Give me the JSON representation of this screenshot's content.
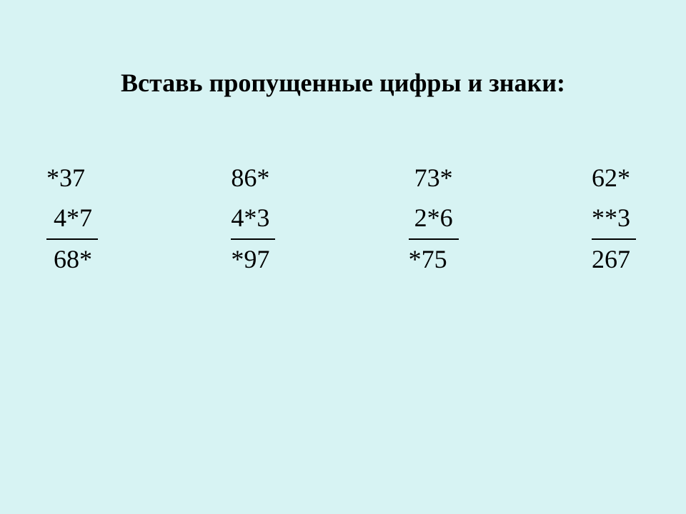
{
  "title": "Вставь пропущенные цифры и знаки:",
  "background_color": "#d7f3f3",
  "text_color": "#000000",
  "title_fontsize": 36,
  "problem_fontsize": 36,
  "font_family": "Times New Roman",
  "problems": [
    {
      "row1": "*37",
      "row2": "4*7",
      "row3": "68*"
    },
    {
      "row1": "86*",
      "row2": "4*3",
      "row3": "*97"
    },
    {
      "row1": "73*",
      "row2": "2*6",
      "row3": "*75"
    },
    {
      "row1": "62*",
      "row2": "**3",
      "row3": "267"
    }
  ]
}
